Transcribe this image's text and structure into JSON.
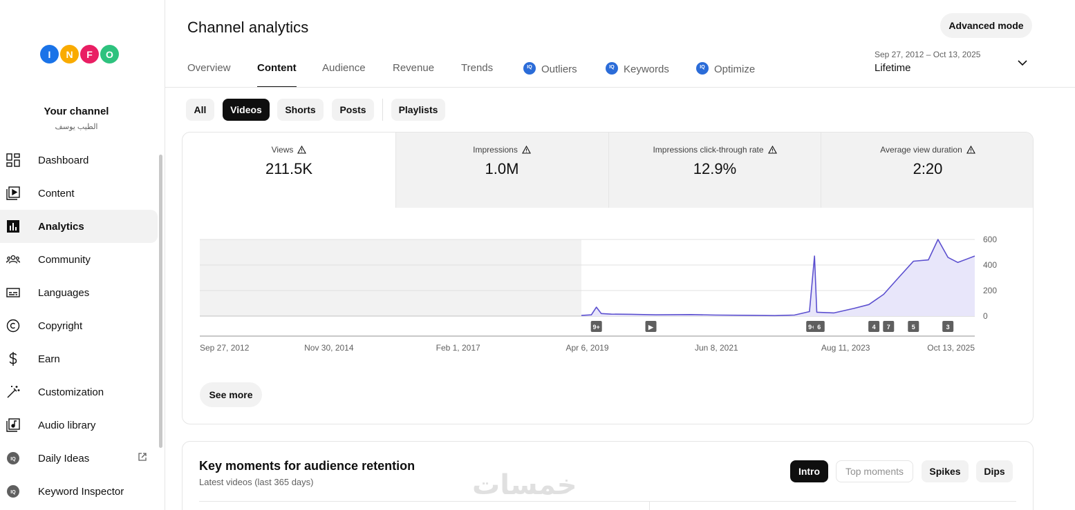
{
  "sidebar": {
    "logo_letters": [
      "I",
      "N",
      "F",
      "O"
    ],
    "logo_colors": [
      "#1a73e8",
      "#f9ab00",
      "#e91e63",
      "#2ec27e"
    ],
    "channel_title": "Your channel",
    "channel_name": "الطيب يوسف",
    "items": [
      {
        "label": "Dashboard",
        "icon": "dashboard-icon"
      },
      {
        "label": "Content",
        "icon": "content-icon"
      },
      {
        "label": "Analytics",
        "icon": "analytics-icon",
        "active": true
      },
      {
        "label": "Community",
        "icon": "community-icon"
      },
      {
        "label": "Languages",
        "icon": "languages-icon"
      },
      {
        "label": "Copyright",
        "icon": "copyright-icon"
      },
      {
        "label": "Earn",
        "icon": "earn-icon"
      },
      {
        "label": "Customization",
        "icon": "customization-icon"
      },
      {
        "label": "Audio library",
        "icon": "audio-library-icon"
      },
      {
        "label": "Daily Ideas",
        "icon": "vidiq-icon",
        "external": true
      },
      {
        "label": "Keyword Inspector",
        "icon": "vidiq-icon"
      }
    ]
  },
  "header": {
    "title": "Channel analytics",
    "advanced_mode": "Advanced mode",
    "date_range": "Sep 27, 2012 – Oct 13, 2025",
    "date_label": "Lifetime"
  },
  "tabs": [
    {
      "label": "Overview"
    },
    {
      "label": "Content",
      "active": true
    },
    {
      "label": "Audience"
    },
    {
      "label": "Revenue"
    },
    {
      "label": "Trends"
    },
    {
      "label": "Outliers",
      "vidiq": true
    },
    {
      "label": "Keywords",
      "vidiq": true
    },
    {
      "label": "Optimize",
      "vidiq": true
    }
  ],
  "chips": [
    {
      "label": "All"
    },
    {
      "label": "Videos",
      "selected": true
    },
    {
      "label": "Shorts"
    },
    {
      "label": "Posts"
    },
    {
      "label": "Playlists"
    }
  ],
  "metrics": [
    {
      "label": "Views",
      "value": "211.5K"
    },
    {
      "label": "Impressions",
      "value": "1.0M"
    },
    {
      "label": "Impressions click-through rate",
      "value": "12.9%"
    },
    {
      "label": "Average view duration",
      "value": "2:20"
    }
  ],
  "see_more": "See more",
  "chart_data": {
    "type": "line",
    "series": [
      {
        "values_description_only": true
      }
    ],
    "x_labels": [
      "Sep 27, 2012",
      "Nov 30, 2014",
      "Feb 1, 2017",
      "Apr 6, 2019",
      "Jun 8, 2021",
      "Aug 11, 2023",
      "Oct 13, 2025"
    ],
    "y_ticks": [
      0,
      200,
      400,
      600
    ],
    "ylim": [
      0,
      600
    ],
    "color": "#5b4fcf",
    "no_data_before": "2019-03",
    "points": [
      [
        "2019-03-01",
        5
      ],
      [
        "2019-05-01",
        10
      ],
      [
        "2019-06-01",
        70
      ],
      [
        "2019-07-01",
        20
      ],
      [
        "2019-09-01",
        15
      ],
      [
        "2020-01-01",
        14
      ],
      [
        "2020-06-01",
        10
      ],
      [
        "2021-01-01",
        12
      ],
      [
        "2021-06-01",
        8
      ],
      [
        "2022-01-01",
        6
      ],
      [
        "2022-06-01",
        4
      ],
      [
        "2022-10-01",
        8
      ],
      [
        "2023-01-01",
        35
      ],
      [
        "2023-02-01",
        470
      ],
      [
        "2023-02-15",
        30
      ],
      [
        "2023-06-01",
        25
      ],
      [
        "2023-10-01",
        60
      ],
      [
        "2024-01-01",
        90
      ],
      [
        "2024-04-01",
        170
      ],
      [
        "2024-07-01",
        300
      ],
      [
        "2024-10-01",
        430
      ],
      [
        "2025-01-01",
        440
      ],
      [
        "2025-03-01",
        600
      ],
      [
        "2025-05-01",
        460
      ],
      [
        "2025-07-01",
        420
      ],
      [
        "2025-10-13",
        470
      ]
    ],
    "markers": [
      {
        "label": "9+",
        "date": "2019-06-01"
      },
      {
        "label": "▶",
        "date": "2020-05-01"
      },
      {
        "label": "9+",
        "date": "2023-01-15"
      },
      {
        "label": "6",
        "date": "2023-03-01"
      },
      {
        "label": "4",
        "date": "2024-02-01"
      },
      {
        "label": "7",
        "date": "2024-05-01"
      },
      {
        "label": "5",
        "date": "2024-10-01"
      },
      {
        "label": "3",
        "date": "2025-05-01"
      }
    ]
  },
  "key_moments": {
    "title": "Key moments for audience retention",
    "subtitle": "Latest videos (last 365 days)",
    "chips": [
      {
        "label": "Intro",
        "selected": true
      },
      {
        "label": "Top moments",
        "disabled": true
      },
      {
        "label": "Spikes"
      },
      {
        "label": "Dips"
      }
    ]
  },
  "watermark": "خمسات"
}
